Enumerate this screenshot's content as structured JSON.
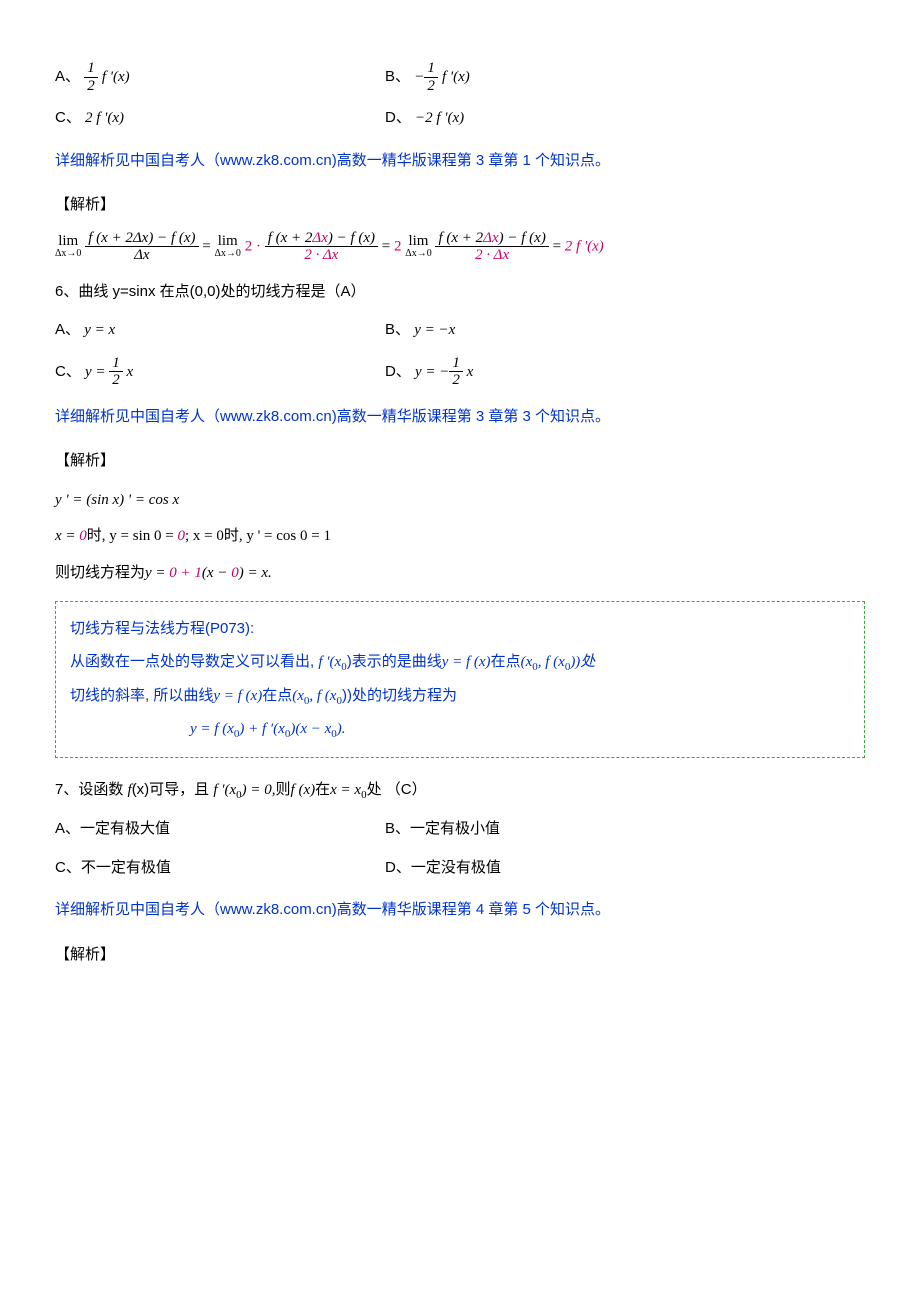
{
  "q5": {
    "optA_label": "A、",
    "optB_label": "B、",
    "optC_label": "C、",
    "optC_math": "2 f '(x)",
    "optD_label": "D、",
    "optD_math": "−2 f '(x)",
    "link": "详细解析见中国自考人（www.zk8.com.cn)高数一精华版课程第 3 章第 1 个知识点。",
    "analysis_title": "【解析】"
  },
  "q6": {
    "question": "6、曲线 y=sinx 在点(0,0)处的切线方程是（A）",
    "optA_label": "A、",
    "optA_math": "y = x",
    "optB_label": "B、",
    "optB_math": "y = −x",
    "optC_label": "C、",
    "optD_label": "D、",
    "link": "详细解析见中国自考人（www.zk8.com.cn)高数一精华版课程第 3 章第 3 个知识点。",
    "analysis_title": "【解析】",
    "line1": "y ' = (sin x) ' = cos x",
    "line2_pre": "x = ",
    "line2_zero": "0",
    "line2_mid": "时, y = sin 0 = ",
    "line2_zero2": "0",
    "line2_end": "; x = 0时, y ' = cos 0 = 1",
    "line3_pre": "则切线方程为",
    "line3_math_a": "y = ",
    "line3_math_b": "0 + 1",
    "line3_math_c": "(x − ",
    "line3_math_d": "0",
    "line3_math_e": ") = x."
  },
  "theorem": {
    "title": "切线方程与法线方程(P073):",
    "line1a": "从函数在一点处的导数定义可以看出, ",
    "line1b": "f ′(x",
    "line1b_sub": "0",
    "line1c": ")表示的是曲线",
    "line1d": "y = f (x)",
    "line1e": "在点",
    "line1f": "(x",
    "line1f_sub": "0",
    "line1g": ", f (x",
    "line1g_sub": "0",
    "line1h": "))处",
    "line2a": "切线的斜率, 所以曲线",
    "line2b": "y = f (x)",
    "line2c": "在点",
    "line2d": "(x",
    "line2d_sub": "0",
    "line2e": ", f (x",
    "line2e_sub": "0",
    "line2f": "))处的切线方程为",
    "formula": "y = f (x",
    "formula_sub1": "0",
    "formula_mid": ") + f ′(x",
    "formula_sub2": "0",
    "formula_end": ")(x − x",
    "formula_sub3": "0",
    "formula_close": ")."
  },
  "q7": {
    "question_pre": "7、设函数 ",
    "question_fx": "f",
    "question_mid": "(x)可导，且 ",
    "question_cond": "f '(x",
    "question_sub": "0",
    "question_cond2": ") = 0,",
    "question_then": "则",
    "question_fx2": "f (x)",
    "question_at": "在",
    "question_xeq": "x = x",
    "question_sub2": "0",
    "question_end": "处 （C）",
    "optA": "A、一定有极大值",
    "optB": "B、一定有极小值",
    "optC": "C、不一定有极值",
    "optD": "D、一定没有极值",
    "link": "详细解析见中国自考人（www.zk8.com.cn)高数一精华版课程第 4 章第 5 个知识点。",
    "analysis_title": "【解析】"
  }
}
